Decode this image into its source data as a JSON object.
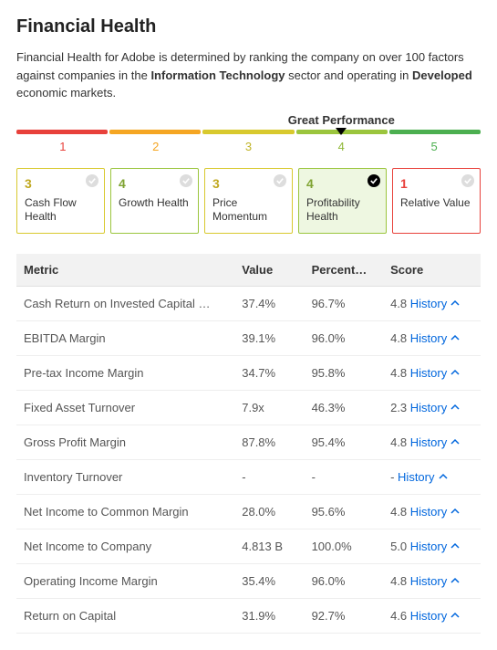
{
  "title": "Financial Health",
  "description": {
    "pre": "Financial Health for Adobe is determined by ranking the company on over 100 factors against companies in the ",
    "sector": "Information Technology",
    "mid": " sector and operating in ",
    "market": "Developed",
    "post": " economic markets."
  },
  "performance": {
    "label": "Great Performance",
    "marker_index": 3,
    "segments": [
      {
        "num": "1",
        "color": "#e8413b",
        "num_color": "#e8413b"
      },
      {
        "num": "2",
        "color": "#f5a623",
        "num_color": "#f5a623"
      },
      {
        "num": "3",
        "color": "#d8c92e",
        "num_color": "#c0b428"
      },
      {
        "num": "4",
        "color": "#9bc53d",
        "num_color": "#8fb736"
      },
      {
        "num": "5",
        "color": "#4caf50",
        "num_color": "#4caf50"
      }
    ]
  },
  "cards": [
    {
      "score": "3",
      "label": "Cash Flow Health",
      "border": "#d8c92e",
      "text": "#c0a820",
      "bg": "#ffffff",
      "selected": false
    },
    {
      "score": "4",
      "label": "Growth Health",
      "border": "#9bc53d",
      "text": "#7fa332",
      "bg": "#ffffff",
      "selected": false
    },
    {
      "score": "3",
      "label": "Price Momentum",
      "border": "#d8c92e",
      "text": "#c0a820",
      "bg": "#ffffff",
      "selected": false
    },
    {
      "score": "4",
      "label": "Profitability Health",
      "border": "#9bc53d",
      "text": "#7fa332",
      "bg": "#eef7e1",
      "selected": true
    },
    {
      "score": "1",
      "label": "Relative Value",
      "border": "#e8413b",
      "text": "#e8413b",
      "bg": "#ffffff",
      "selected": false
    }
  ],
  "table": {
    "headers": {
      "metric": "Metric",
      "value": "Value",
      "percentile": "Percent…",
      "score": "Score"
    },
    "history_label": "History",
    "rows": [
      {
        "metric": "Cash Return on Invested Capital …",
        "value": "37.4%",
        "percentile": "96.7%",
        "score": "4.8"
      },
      {
        "metric": "EBITDA Margin",
        "value": "39.1%",
        "percentile": "96.0%",
        "score": "4.8"
      },
      {
        "metric": "Pre-tax Income Margin",
        "value": "34.7%",
        "percentile": "95.8%",
        "score": "4.8"
      },
      {
        "metric": "Fixed Asset Turnover",
        "value": "7.9x",
        "percentile": "46.3%",
        "score": "2.3"
      },
      {
        "metric": "Gross Profit Margin",
        "value": "87.8%",
        "percentile": "95.4%",
        "score": "4.8"
      },
      {
        "metric": "Inventory Turnover",
        "value": "-",
        "percentile": "-",
        "score": "-"
      },
      {
        "metric": "Net Income to Common Margin",
        "value": "28.0%",
        "percentile": "95.6%",
        "score": "4.8"
      },
      {
        "metric": "Net Income to Company",
        "value": "4.813 B",
        "percentile": "100.0%",
        "score": "5.0"
      },
      {
        "metric": "Operating Income Margin",
        "value": "35.4%",
        "percentile": "96.0%",
        "score": "4.8"
      },
      {
        "metric": "Return on Capital",
        "value": "31.9%",
        "percentile": "92.7%",
        "score": "4.6"
      }
    ]
  }
}
